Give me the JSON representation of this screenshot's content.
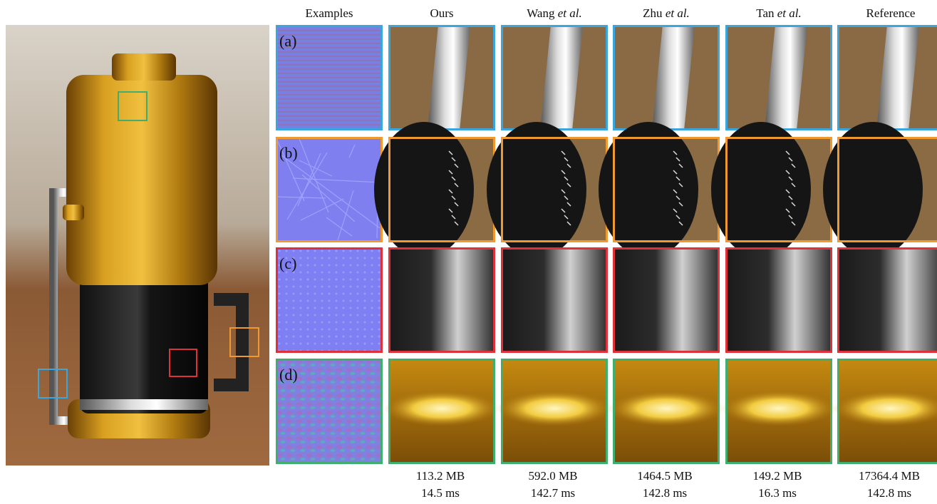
{
  "figure": {
    "columns": [
      {
        "text": "Examples"
      },
      {
        "text": "Ours"
      },
      {
        "text": "Wang",
        "italic": "et al."
      },
      {
        "text": "Zhu",
        "italic": "et al."
      },
      {
        "text": "Tan",
        "italic": "et al."
      },
      {
        "text": "Reference"
      }
    ],
    "rows": [
      {
        "label": "(a)"
      },
      {
        "label": "(b)"
      },
      {
        "label": "(c)"
      },
      {
        "label": "(d)"
      }
    ],
    "stats": [
      {
        "memory": "113.2 MB",
        "time": "14.5 ms"
      },
      {
        "memory": "592.0 MB",
        "time": "142.7 ms"
      },
      {
        "memory": "1464.5 MB",
        "time": "142.8 ms"
      },
      {
        "memory": "149.2 MB",
        "time": "16.3 ms"
      },
      {
        "memory": "17364.4 MB",
        "time": "142.8 ms"
      }
    ]
  }
}
